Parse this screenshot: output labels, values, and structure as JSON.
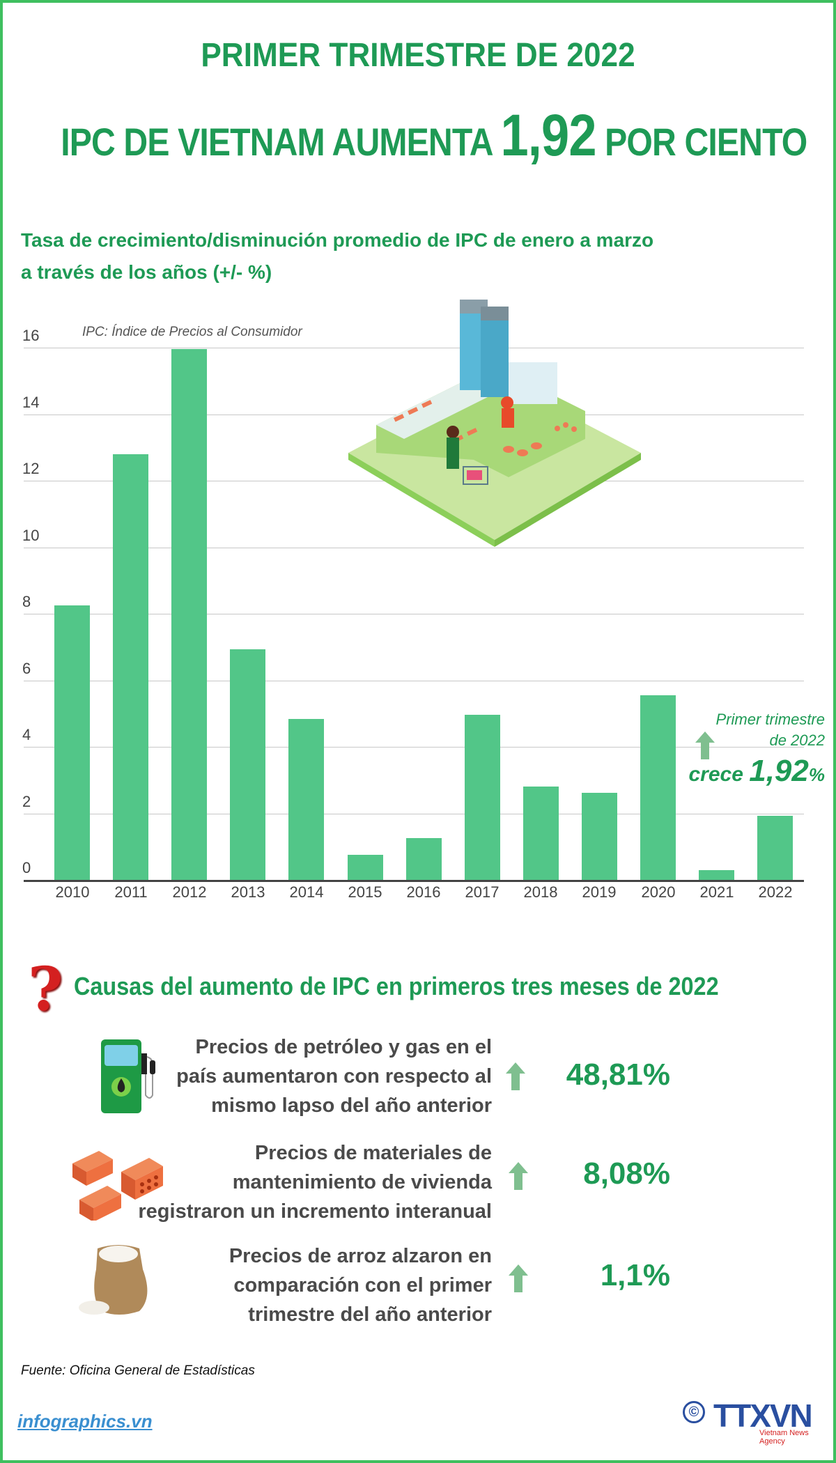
{
  "header": {
    "title_line1": "PRIMER TRIMESTRE DE 2022",
    "title_line2_prefix": "IPC DE VIETNAM AUMENTA ",
    "title_line2_value": "1,92",
    "title_line2_suffix": " POR CIENTO"
  },
  "chart_section": {
    "subtitle_line1": "Tasa de crecimiento/disminución promedio de IPC de enero a marzo",
    "subtitle_line2": "a través de los años (+/- %)",
    "note": "IPC: Índice de Precios al Consumidor",
    "annotation_line1": "Primer trimestre",
    "annotation_line2": "de 2022",
    "annotation_word": "crece ",
    "annotation_value": "1,92",
    "annotation_unit": "%"
  },
  "chart_data": {
    "type": "bar",
    "title": "Tasa de crecimiento/disminución promedio de IPC de enero a marzo a través de los años (+/- %)",
    "xlabel": "",
    "ylabel": "",
    "categories": [
      "2010",
      "2011",
      "2012",
      "2013",
      "2014",
      "2015",
      "2016",
      "2017",
      "2018",
      "2019",
      "2020",
      "2021",
      "2022"
    ],
    "values": [
      8.25,
      12.8,
      15.96,
      6.93,
      4.84,
      0.75,
      1.26,
      4.96,
      2.81,
      2.62,
      5.56,
      0.29,
      1.92
    ],
    "ylim": [
      0,
      16
    ],
    "yticks": [
      "0",
      "2",
      "4",
      "6",
      "8",
      "10",
      "12",
      "14",
      "16"
    ],
    "grid": true,
    "bar_color": "#52c688",
    "annotations": [
      "IPC: Índice de Precios al Consumidor",
      "Primer trimestre de 2022 crece 1,92%"
    ]
  },
  "causes": {
    "title": "Causas del aumento de IPC en primeros tres meses de 2022",
    "items": [
      {
        "icon": "fuel-pump-icon",
        "line1": "Precios de petróleo y gas en el",
        "line2": "país aumentaron con respecto al",
        "line3": "mismo lapso del año anterior",
        "value": "48,81%"
      },
      {
        "icon": "bricks-icon",
        "line1": "Precios de materiales de",
        "line2": "mantenimiento de vivienda",
        "line3": "registraron un incremento interanual",
        "value": "8,08%"
      },
      {
        "icon": "rice-sack-icon",
        "line1": "Precios de arroz alzaron en",
        "line2": "comparación con el primer",
        "line3": "trimestre del año anterior",
        "value": "1,1%"
      }
    ]
  },
  "footer": {
    "source": "Fuente: Oficina General de Estadísticas",
    "site": "infographics.vn",
    "logo_copyright": "©",
    "logo_text": "TTXVN",
    "logo_subtext": "Vietnam News Agency"
  },
  "colors": {
    "primary_green": "#1e9a55",
    "bar_green": "#52c688",
    "border_green": "#3fbf5f",
    "arrow_green": "#7fbf8f",
    "text_gray": "#4a4a4a",
    "link_blue": "#3a8fd0",
    "logo_blue": "#2a4fa0"
  }
}
